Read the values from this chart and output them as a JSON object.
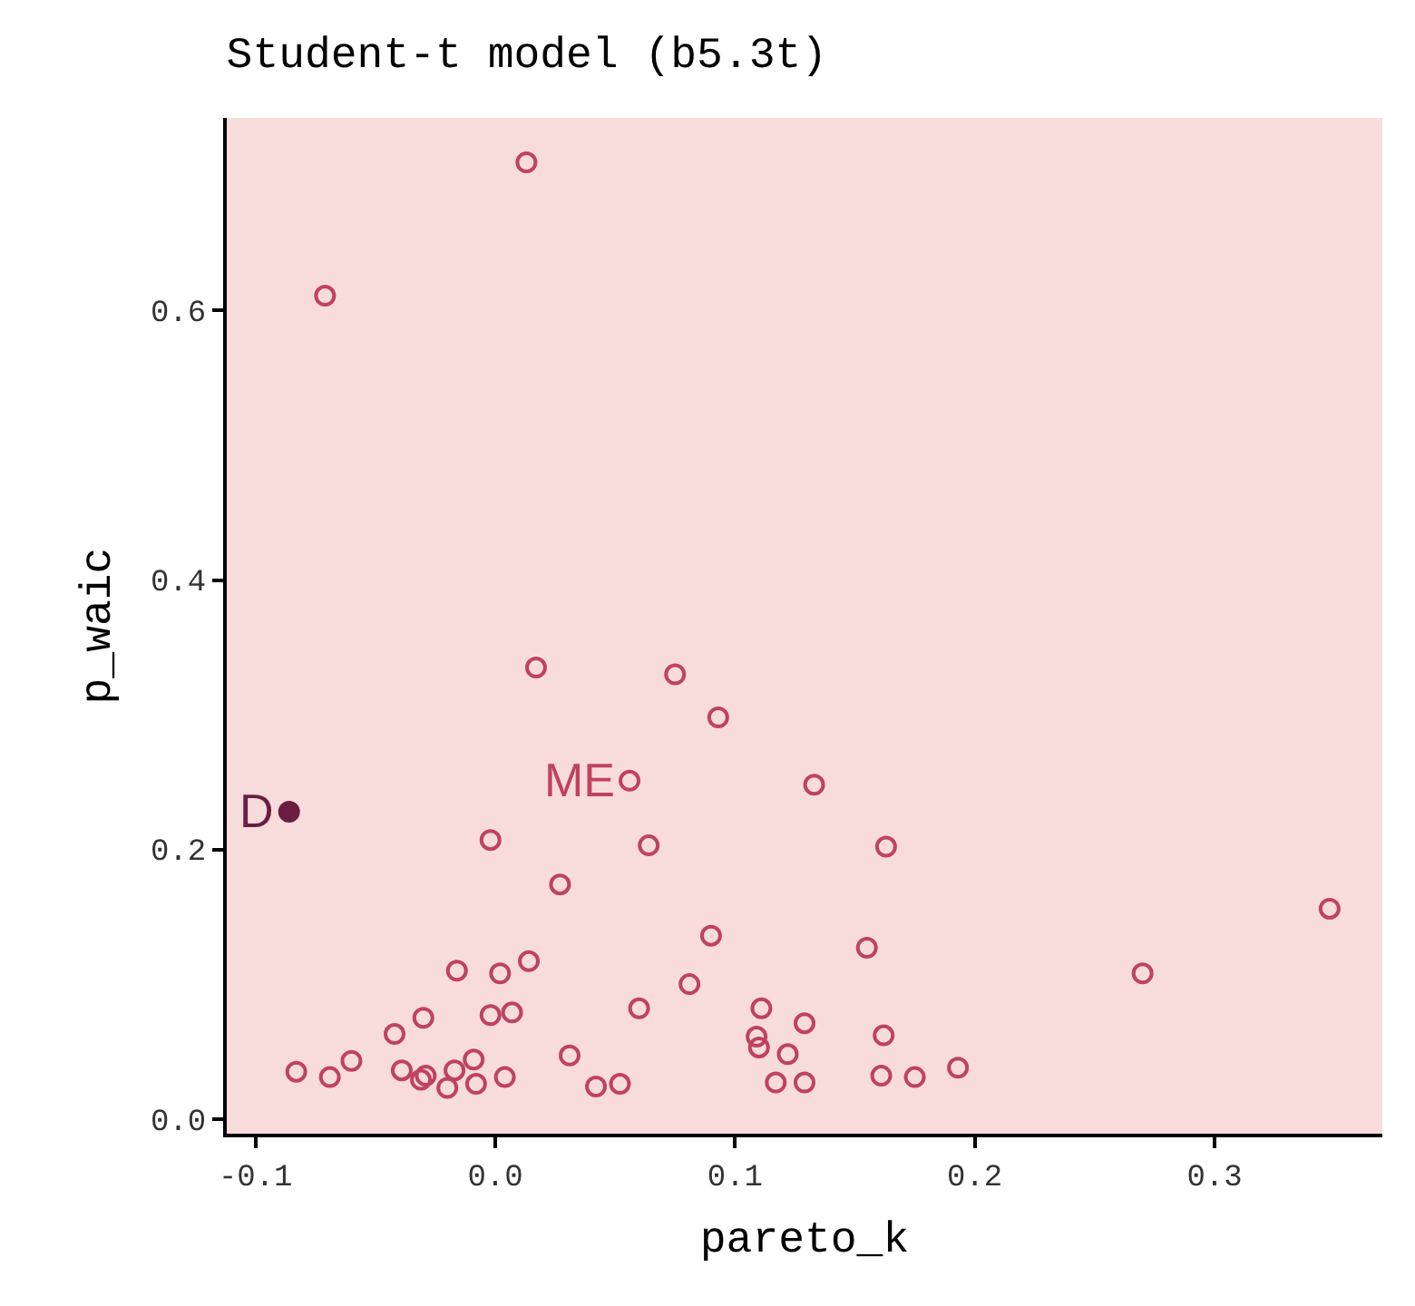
{
  "chart_data": {
    "type": "scatter",
    "title": "Student-t model (b5.3t)",
    "xlabel": "pareto_k",
    "ylabel": "p_waic",
    "xlim": [
      -0.112,
      0.37
    ],
    "ylim": [
      -0.011,
      0.743
    ],
    "xticks": [
      -0.1,
      {
        "value": 0,
        "label": "0.0"
      },
      0.1,
      0.2,
      0.3
    ],
    "yticks": [
      {
        "value": 0,
        "label": "0.0"
      },
      0.2,
      0.4,
      0.6
    ],
    "grid": false,
    "series": [
      {
        "color": "#c0425f",
        "marker": "circle-open",
        "x": [
          0.013,
          -0.071,
          0.017,
          0.075,
          0.093,
          0.056,
          0.133,
          -0.002,
          0.064,
          0.163,
          0.027,
          0.09,
          0.155,
          0.348,
          0.27,
          -0.016,
          0.002,
          0.014,
          0.081,
          0.06,
          -0.002,
          0.007,
          -0.03,
          -0.042,
          -0.06,
          -0.083,
          -0.069,
          -0.039,
          -0.031,
          -0.029,
          -0.017,
          -0.02,
          -0.009,
          -0.008,
          0.004,
          0.031,
          0.042,
          0.052,
          0.111,
          0.109,
          0.11,
          0.122,
          0.129,
          0.117,
          0.129,
          0.162,
          0.161,
          0.175,
          0.193
        ],
        "values": [
          0.71,
          0.611,
          0.335,
          0.33,
          0.298,
          0.251,
          0.248,
          0.207,
          0.203,
          0.202,
          0.174,
          0.136,
          0.127,
          0.156,
          0.108,
          0.11,
          0.108,
          0.117,
          0.1,
          0.082,
          0.077,
          0.079,
          0.075,
          0.063,
          0.043,
          0.035,
          0.031,
          0.036,
          0.029,
          0.032,
          0.036,
          0.023,
          0.044,
          0.026,
          0.031,
          0.047,
          0.024,
          0.026,
          0.082,
          0.061,
          0.053,
          0.048,
          0.071,
          0.027,
          0.027,
          0.062,
          0.032,
          0.031,
          0.038
        ]
      },
      {
        "color": "#6b1d42",
        "marker": "circle",
        "x": [
          -0.086
        ],
        "values": [
          0.228
        ]
      }
    ],
    "annotations": [
      {
        "text": "D",
        "x": -0.086,
        "y": 0.228
      },
      {
        "text": "ME",
        "x": 0.056,
        "y": 0.251
      }
    ]
  }
}
